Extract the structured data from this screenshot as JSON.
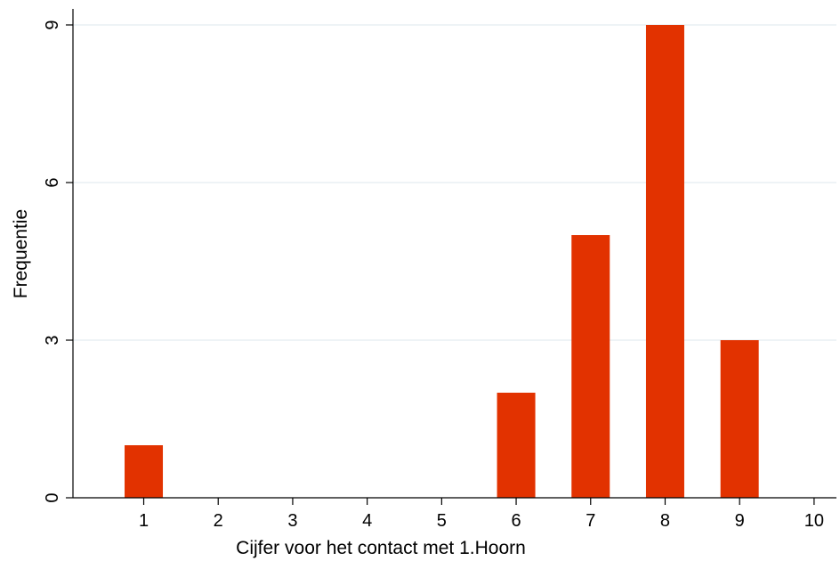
{
  "chart_data": {
    "type": "bar",
    "title": "",
    "xlabel": "Cijfer voor het contact met 1.Hoorn",
    "ylabel": "Frequentie",
    "categories": [
      "1",
      "2",
      "3",
      "4",
      "5",
      "6",
      "7",
      "8",
      "9",
      "10"
    ],
    "values": [
      1,
      0,
      0,
      0,
      0,
      2,
      5,
      9,
      3,
      0
    ],
    "x_ticks": [
      "1",
      "2",
      "3",
      "4",
      "5",
      "6",
      "7",
      "8",
      "9",
      "10"
    ],
    "y_ticks": [
      "0",
      "3",
      "6",
      "9"
    ],
    "ylim": [
      0,
      9
    ],
    "xlim": [
      0.05,
      10.3
    ],
    "grid": true,
    "legend": "none",
    "bar_color": "#e23200",
    "grid_color": "#e3ecf0"
  }
}
